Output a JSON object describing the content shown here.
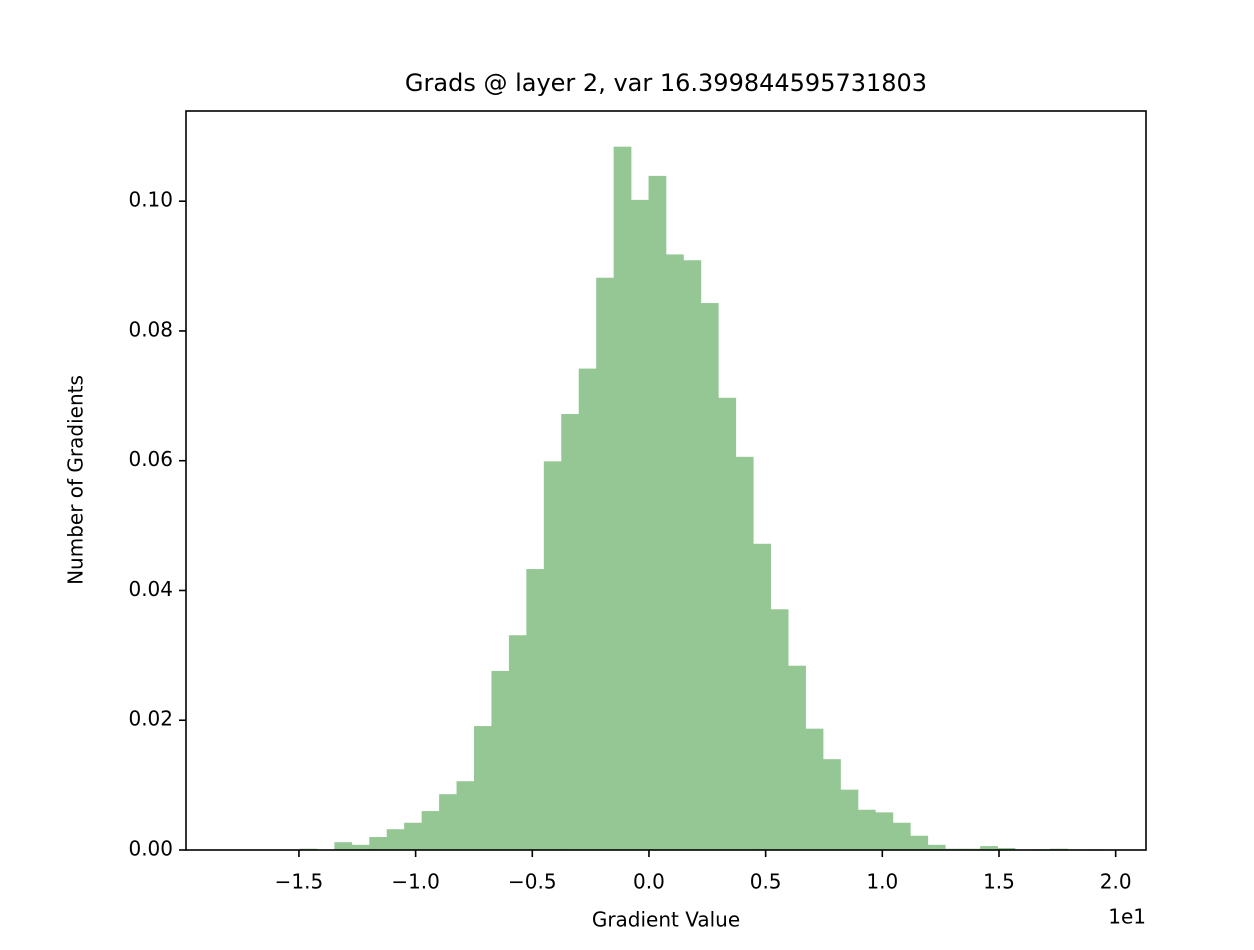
{
  "chart_data": {
    "type": "histogram",
    "title": "Grads @ layer 2, var 16.399844595731803",
    "xlabel": "Gradient Value",
    "ylabel": "Number of Gradients",
    "x_offset_label": "1e1",
    "color": "#94c794",
    "bins": [
      -1.797,
      -1.7222,
      -1.6474,
      -1.5726,
      -1.4978,
      -1.423,
      -1.3482,
      -1.2734,
      -1.1986,
      -1.1238,
      -1.049,
      -0.9742,
      -0.8994,
      -0.8246,
      -0.7498,
      -0.675,
      -0.6002,
      -0.5254,
      -0.4506,
      -0.3758,
      -0.301,
      -0.2262,
      -0.1514,
      -0.0766,
      -0.0018,
      0.073,
      0.1478,
      0.2226,
      0.2974,
      0.3722,
      0.447,
      0.5218,
      0.5966,
      0.6714,
      0.7462,
      0.821,
      0.8958,
      0.9706,
      1.0454,
      1.1202,
      1.195,
      1.2698,
      1.3446,
      1.4194,
      1.4942,
      1.569,
      1.6438,
      1.7186,
      1.7934,
      1.8682,
      1.943
    ],
    "counts": [
      0,
      0,
      0,
      0,
      0.0002,
      0,
      0.0012,
      0.0008,
      0.002,
      0.0032,
      0.0042,
      0.006,
      0.0086,
      0.0106,
      0.0191,
      0.0276,
      0.0331,
      0.0433,
      0.0599,
      0.0672,
      0.0742,
      0.0882,
      0.1084,
      0.1002,
      0.1039,
      0.0918,
      0.0909,
      0.0843,
      0.0697,
      0.0606,
      0.0472,
      0.0371,
      0.0284,
      0.0187,
      0.014,
      0.0093,
      0.0062,
      0.0058,
      0.0042,
      0.0022,
      0.0008,
      0.0002,
      0.0002,
      0.0006,
      0.0003,
      0,
      0.0001,
      0.0002,
      0,
      0.0001
    ],
    "xlim": [
      -1.984,
      2.13
    ],
    "ylim": [
      0,
      0.1139
    ],
    "xticks": [
      {
        "value": -1.5,
        "label": "−1.5"
      },
      {
        "value": -1.0,
        "label": "−1.0"
      },
      {
        "value": -0.5,
        "label": "−0.5"
      },
      {
        "value": 0,
        "label": "0.0"
      },
      0.5,
      {
        "value": 1.0,
        "label": "1.0"
      },
      1.5,
      {
        "value": 2.0,
        "label": "2.0"
      }
    ],
    "yticks": [
      {
        "value": 0,
        "label": "0.00"
      },
      {
        "value": 0.02,
        "label": "0.02"
      },
      {
        "value": 0.04,
        "label": "0.04"
      },
      {
        "value": 0.06,
        "label": "0.06"
      },
      {
        "value": 0.08,
        "label": "0.08"
      },
      {
        "value": 0.1,
        "label": "0.10"
      }
    ],
    "grid": false
  }
}
